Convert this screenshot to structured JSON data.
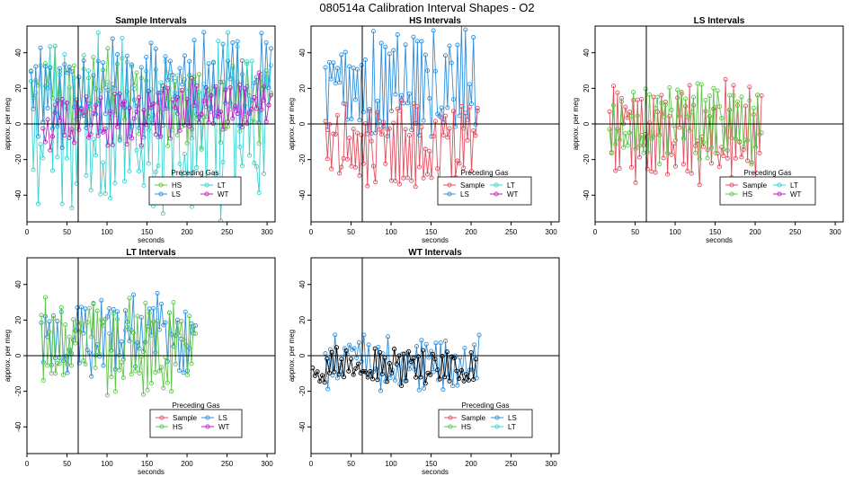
{
  "figure": {
    "title": "080514a   Calibration Interval Shapes - O2",
    "legend_title": "Preceding Gas",
    "xlabel": "seconds",
    "ylabel": "approx. per meg",
    "vline_x": 64,
    "hline_y": 0
  },
  "colors": {
    "Sample": "#e0505f",
    "HS": "#5fc64a",
    "LS": "#2f8fdc",
    "LT": "#37d2d2",
    "WT": "#c21fc2",
    "ref": "#000000"
  },
  "chart_data": [
    {
      "type": "line",
      "title": "Sample Intervals",
      "xlim": [
        0,
        310
      ],
      "ylim": [
        -55,
        55
      ],
      "xticks": [
        0,
        50,
        100,
        150,
        200,
        250,
        300
      ],
      "yticks": [
        -40,
        -20,
        0,
        20,
        40
      ],
      "legend": {
        "entries": [
          "HS",
          "LT",
          "LS",
          "WT"
        ],
        "position": "bottom-center"
      },
      "series": [
        {
          "name": "HS",
          "x_start": 5,
          "x_end": 305,
          "step": 3,
          "center": 20,
          "amp": 24,
          "trend": -0.05,
          "seed": 11
        },
        {
          "name": "LT",
          "x_start": 5,
          "x_end": 305,
          "step": 3,
          "center": 0,
          "amp": 48,
          "trend": 0,
          "seed": 23
        },
        {
          "name": "LS",
          "x_start": 5,
          "x_end": 305,
          "step": 3,
          "center": 20,
          "amp": 28,
          "trend": 0,
          "seed": 37
        },
        {
          "name": "WT",
          "x_start": 20,
          "x_end": 305,
          "step": 3,
          "center": -2,
          "amp": 16,
          "trend": 0.06,
          "seed": 41
        }
      ]
    },
    {
      "type": "line",
      "title": "HS Intervals",
      "xlim": [
        0,
        310
      ],
      "ylim": [
        -55,
        55
      ],
      "xticks": [
        0,
        50,
        100,
        150,
        200,
        250,
        300
      ],
      "yticks": [
        -40,
        -20,
        0,
        20,
        40
      ],
      "legend": {
        "entries": [
          "Sample",
          "LT",
          "LS",
          "WT"
        ],
        "position": "bottom-center"
      },
      "series": [
        {
          "name": "LS",
          "x_start": 18,
          "x_end": 208,
          "step": 2.5,
          "center": 22,
          "amp": 30,
          "trend": 0,
          "seed": 53
        },
        {
          "name": "Sample",
          "x_start": 18,
          "x_end": 208,
          "step": 2.5,
          "center": -12,
          "amp": 24,
          "trend": 0,
          "seed": 67
        }
      ]
    },
    {
      "type": "line",
      "title": "LS Intervals",
      "xlim": [
        0,
        310
      ],
      "ylim": [
        -55,
        55
      ],
      "xticks": [
        0,
        50,
        100,
        150,
        200,
        250,
        300
      ],
      "yticks": [
        -40,
        -20,
        0,
        20,
        40
      ],
      "legend": {
        "entries": [
          "Sample",
          "LT",
          "HS",
          "WT"
        ],
        "position": "bottom-right"
      },
      "series": [
        {
          "name": "Sample",
          "x_start": 18,
          "x_end": 208,
          "step": 2.5,
          "center": -5,
          "amp": 26,
          "trend": 0,
          "seed": 71
        },
        {
          "name": "HS",
          "x_start": 18,
          "x_end": 210,
          "step": 2.5,
          "center": 0,
          "amp": 22,
          "trend": 0,
          "seed": 83
        }
      ]
    },
    {
      "type": "line",
      "title": "LT Intervals",
      "xlim": [
        0,
        310
      ],
      "ylim": [
        -55,
        55
      ],
      "xticks": [
        0,
        50,
        100,
        150,
        200,
        250,
        300
      ],
      "yticks": [
        -40,
        -20,
        0,
        20,
        40
      ],
      "legend": {
        "entries": [
          "Sample",
          "LS",
          "HS",
          "WT"
        ],
        "position": "bottom-center"
      },
      "series": [
        {
          "name": "LS",
          "x_start": 18,
          "x_end": 212,
          "step": 2.5,
          "center": 10,
          "amp": 22,
          "trend": 0,
          "seed": 97
        },
        {
          "name": "HS",
          "x_start": 18,
          "x_end": 212,
          "step": 2.5,
          "center": 5,
          "amp": 26,
          "trend": 0,
          "seed": 101
        }
      ]
    },
    {
      "type": "line",
      "title": "WT Intervals",
      "xlim": [
        0,
        310
      ],
      "ylim": [
        -55,
        55
      ],
      "xticks": [
        0,
        50,
        100,
        150,
        200,
        250,
        300
      ],
      "yticks": [
        -40,
        -20,
        0,
        20,
        40
      ],
      "legend": {
        "entries": [
          "Sample",
          "LS",
          "HS",
          "LT"
        ],
        "position": "bottom-center"
      },
      "series": [
        {
          "name": "LS",
          "x_start": 18,
          "x_end": 210,
          "step": 3,
          "center": -4,
          "amp": 14,
          "trend": 0,
          "seed": 113
        },
        {
          "name": "ref",
          "x_start": 2,
          "x_end": 208,
          "step": 3,
          "center": -6,
          "amp": 10,
          "trend": 0,
          "seed": 127
        }
      ]
    }
  ]
}
